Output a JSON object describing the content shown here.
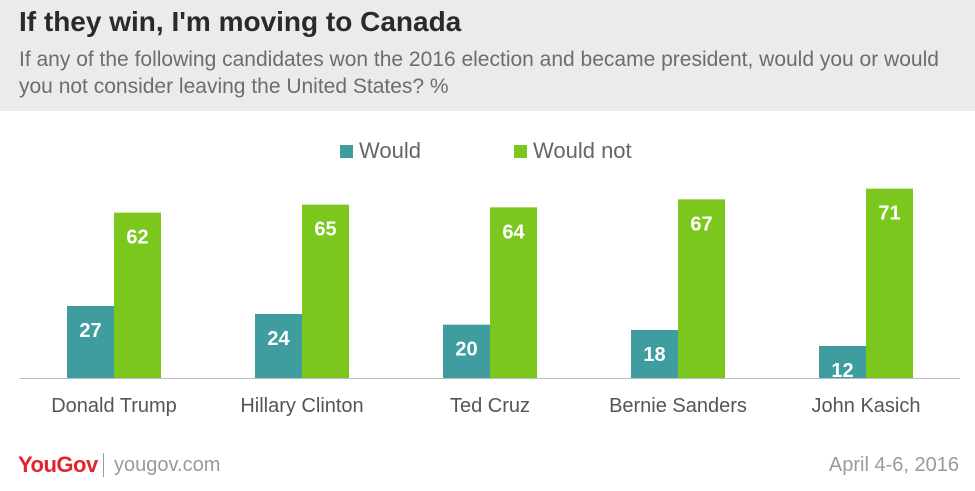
{
  "title": "If they win, I'm moving to Canada",
  "subtitle": "If any of the following candidates won the 2016 election and became president, would you or would you not consider leaving the United States? %",
  "colors": {
    "would": "#3f9c9f",
    "would_not": "#7cc71e",
    "axis": "#bbbbbb"
  },
  "chart_data": {
    "type": "bar",
    "categories": [
      "Donald Trump",
      "Hillary Clinton",
      "Ted Cruz",
      "Bernie Sanders",
      "John Kasich"
    ],
    "series": [
      {
        "name": "Would",
        "values": [
          27,
          24,
          20,
          18,
          12
        ]
      },
      {
        "name": "Would not",
        "values": [
          62,
          65,
          64,
          67,
          71
        ]
      }
    ],
    "ylim": [
      0,
      75
    ],
    "legend": "top-center",
    "grid": false
  },
  "footer": {
    "brand": "YouGov",
    "url": "yougov.com",
    "date": "April 4-6, 2016"
  }
}
